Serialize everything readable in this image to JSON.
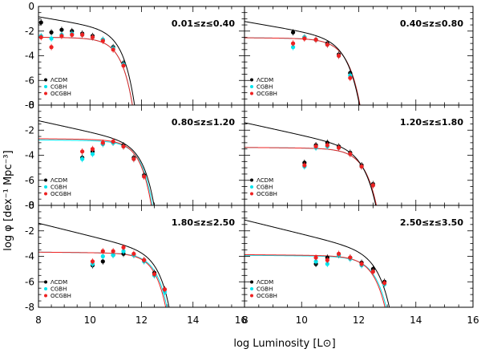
{
  "chart_data": {
    "type": "scatter",
    "xlabel_prefix": "log Luminosity [L",
    "xlabel_suffix": "]",
    "ylabel": "log φ [dex⁻¹ Mpc⁻³]",
    "xlim": [
      8,
      16
    ],
    "ylim": [
      -8,
      0
    ],
    "x_ticks": [
      "8",
      "10",
      "12",
      "14",
      "16"
    ],
    "y_ticks": [
      "-8",
      "-6",
      "-4",
      "-2",
      "0"
    ],
    "legend": [
      {
        "name": "ΛCDM",
        "color": "#000000"
      },
      {
        "name": "CGBH",
        "color": "#00e5ee"
      },
      {
        "name": "OCGBH",
        "color": "#ee2222"
      }
    ],
    "panels": [
      {
        "label": "0.01≤z≤0.40",
        "curves": {
          "ΛCDM": {
            "phi_star": -1.75,
            "slope": -0.35,
            "lstar": 10.6
          },
          "CGBH": {
            "phi_star": -2.55,
            "slope": -0.02,
            "lstar": 10.55
          },
          "OCGBH": {
            "phi_star": -2.55,
            "slope": -0.02,
            "lstar": 10.55
          }
        },
        "points": {
          "ΛCDM": [
            [
              8.1,
              -1.3
            ],
            [
              8.5,
              -2.1
            ],
            [
              8.9,
              -1.9
            ],
            [
              9.3,
              -2.0
            ],
            [
              9.7,
              -2.2
            ],
            [
              10.1,
              -2.4
            ],
            [
              10.5,
              -2.7
            ],
            [
              10.9,
              -3.3
            ],
            [
              11.3,
              -4.6
            ]
          ],
          "CGBH": [
            [
              8.1,
              -2.4
            ],
            [
              8.5,
              -2.6
            ],
            [
              8.9,
              -2.3
            ],
            [
              9.3,
              -2.2
            ],
            [
              9.7,
              -2.3
            ],
            [
              10.1,
              -2.5
            ],
            [
              10.5,
              -2.7
            ],
            [
              10.9,
              -3.4
            ],
            [
              11.3,
              -4.7
            ]
          ],
          "OCGBH": [
            [
              8.1,
              -2.5
            ],
            [
              8.5,
              -3.3
            ],
            [
              8.9,
              -2.4
            ],
            [
              9.3,
              -2.3
            ],
            [
              9.7,
              -2.3
            ],
            [
              10.1,
              -2.5
            ],
            [
              10.5,
              -2.8
            ],
            [
              10.9,
              -3.5
            ],
            [
              11.3,
              -4.8
            ]
          ]
        }
      },
      {
        "label": "0.40≤z≤0.80",
        "curves": {
          "ΛCDM": {
            "phi_star": -2.4,
            "slope": -0.4,
            "lstar": 10.95
          },
          "CGBH": {
            "phi_star": -2.6,
            "slope": -0.02,
            "lstar": 10.95
          },
          "OCGBH": {
            "phi_star": -2.6,
            "slope": -0.02,
            "lstar": 10.95
          }
        },
        "points": {
          "ΛCDM": [
            [
              9.7,
              -2.1
            ],
            [
              10.1,
              -2.5
            ],
            [
              10.5,
              -2.7
            ],
            [
              10.9,
              -3.0
            ],
            [
              11.3,
              -3.9
            ],
            [
              11.7,
              -5.4
            ]
          ],
          "CGBH": [
            [
              9.7,
              -3.3
            ],
            [
              10.1,
              -2.5
            ],
            [
              10.5,
              -2.7
            ],
            [
              10.9,
              -3.1
            ],
            [
              11.3,
              -4.0
            ],
            [
              11.7,
              -5.6
            ]
          ],
          "OCGBH": [
            [
              9.7,
              -3.0
            ],
            [
              10.1,
              -2.6
            ],
            [
              10.5,
              -2.7
            ],
            [
              10.9,
              -3.1
            ],
            [
              11.3,
              -4.0
            ],
            [
              11.7,
              -5.8
            ]
          ]
        }
      },
      {
        "label": "0.80≤z≤1.20",
        "curves": {
          "ΛCDM": {
            "phi_star": -2.8,
            "slope": -0.45,
            "lstar": 11.45
          },
          "CGBH": {
            "phi_star": -2.85,
            "slope": -0.02,
            "lstar": 11.35
          },
          "OCGBH": {
            "phi_star": -2.75,
            "slope": -0.02,
            "lstar": 11.3
          }
        },
        "points": {
          "ΛCDM": [
            [
              9.7,
              -4.2
            ],
            [
              10.1,
              -3.7
            ],
            [
              10.5,
              -3.1
            ],
            [
              10.9,
              -3.0
            ],
            [
              11.3,
              -3.2
            ],
            [
              11.7,
              -4.2
            ],
            [
              12.1,
              -5.6
            ]
          ],
          "CGBH": [
            [
              9.7,
              -4.3
            ],
            [
              10.1,
              -3.9
            ],
            [
              10.5,
              -3.1
            ],
            [
              10.9,
              -3.0
            ],
            [
              11.3,
              -3.3
            ],
            [
              11.7,
              -4.3
            ],
            [
              12.1,
              -5.7
            ]
          ],
          "OCGBH": [
            [
              9.7,
              -3.7
            ],
            [
              10.1,
              -3.5
            ],
            [
              10.5,
              -3.0
            ],
            [
              10.9,
              -2.9
            ],
            [
              11.3,
              -3.3
            ],
            [
              11.7,
              -4.3
            ],
            [
              12.1,
              -5.7
            ]
          ]
        }
      },
      {
        "label": "1.20≤z≤1.80",
        "curves": {
          "ΛCDM": {
            "phi_star": -3.2,
            "slope": -0.5,
            "lstar": 11.6
          },
          "CGBH": {
            "phi_star": -3.45,
            "slope": -0.02,
            "lstar": 11.6
          },
          "OCGBH": {
            "phi_star": -3.45,
            "slope": -0.02,
            "lstar": 11.6
          }
        },
        "points": {
          "ΛCDM": [
            [
              10.1,
              -4.6
            ],
            [
              10.5,
              -3.2
            ],
            [
              10.9,
              -3.0
            ],
            [
              11.3,
              -3.3
            ],
            [
              11.7,
              -3.8
            ],
            [
              12.1,
              -4.8
            ],
            [
              12.5,
              -6.3
            ]
          ],
          "CGBH": [
            [
              10.1,
              -4.9
            ],
            [
              10.5,
              -3.4
            ],
            [
              10.9,
              -3.3
            ],
            [
              11.3,
              -3.4
            ],
            [
              11.7,
              -3.9
            ],
            [
              12.1,
              -4.9
            ],
            [
              12.5,
              -6.4
            ]
          ],
          "OCGBH": [
            [
              10.1,
              -4.8
            ],
            [
              10.5,
              -3.3
            ],
            [
              10.9,
              -3.2
            ],
            [
              11.3,
              -3.4
            ],
            [
              11.7,
              -3.9
            ],
            [
              12.1,
              -4.9
            ],
            [
              12.5,
              -6.4
            ]
          ]
        }
      },
      {
        "label": "1.80≤z≤2.50",
        "curves": {
          "ΛCDM": {
            "phi_star": -3.45,
            "slope": -0.5,
            "lstar": 12.1
          },
          "CGBH": {
            "phi_star": -3.75,
            "slope": -0.02,
            "lstar": 12.0
          },
          "OCGBH": {
            "phi_star": -3.75,
            "slope": -0.02,
            "lstar": 11.95
          }
        },
        "points": {
          "ΛCDM": [
            [
              10.1,
              -4.7
            ],
            [
              10.5,
              -4.4
            ],
            [
              10.9,
              -3.9
            ],
            [
              11.3,
              -3.8
            ],
            [
              11.7,
              -3.9
            ],
            [
              12.1,
              -4.3
            ],
            [
              12.5,
              -5.3
            ],
            [
              12.9,
              -6.6
            ]
          ],
          "CGBH": [
            [
              10.1,
              -4.6
            ],
            [
              10.5,
              -4.0
            ],
            [
              10.9,
              -3.9
            ],
            [
              11.3,
              -3.6
            ],
            [
              11.7,
              -3.9
            ],
            [
              12.1,
              -4.4
            ],
            [
              12.5,
              -5.5
            ],
            [
              12.9,
              -6.8
            ]
          ],
          "OCGBH": [
            [
              10.1,
              -4.4
            ],
            [
              10.5,
              -3.6
            ],
            [
              10.9,
              -3.6
            ],
            [
              11.3,
              -3.3
            ],
            [
              11.7,
              -3.8
            ],
            [
              12.1,
              -4.3
            ],
            [
              12.5,
              -5.4
            ],
            [
              12.9,
              -6.6
            ]
          ]
        }
      },
      {
        "label": "2.50≤z≤3.50",
        "curves": {
          "ΛCDM": {
            "phi_star": -3.4,
            "slope": -0.55,
            "lstar": 12.1
          },
          "CGBH": {
            "phi_star": -4.0,
            "slope": -0.02,
            "lstar": 12.0
          },
          "OCGBH": {
            "phi_star": -3.95,
            "slope": -0.02,
            "lstar": 11.95
          }
        },
        "points": {
          "ΛCDM": [
            [
              10.5,
              -4.6
            ],
            [
              10.9,
              -4.1
            ],
            [
              11.3,
              -3.9
            ],
            [
              11.7,
              -4.1
            ],
            [
              12.1,
              -4.5
            ],
            [
              12.5,
              -5.0
            ],
            [
              12.9,
              -6.0
            ]
          ],
          "CGBH": [
            [
              10.5,
              -4.4
            ],
            [
              10.9,
              -4.6
            ],
            [
              11.3,
              -3.9
            ],
            [
              11.7,
              -4.2
            ],
            [
              12.1,
              -4.7
            ],
            [
              12.5,
              -5.2
            ],
            [
              12.9,
              -6.2
            ]
          ],
          "OCGBH": [
            [
              10.5,
              -4.1
            ],
            [
              10.9,
              -4.3
            ],
            [
              11.3,
              -3.8
            ],
            [
              11.7,
              -4.1
            ],
            [
              12.1,
              -4.6
            ],
            [
              12.5,
              -5.2
            ],
            [
              12.9,
              -6.1
            ]
          ]
        }
      }
    ]
  }
}
